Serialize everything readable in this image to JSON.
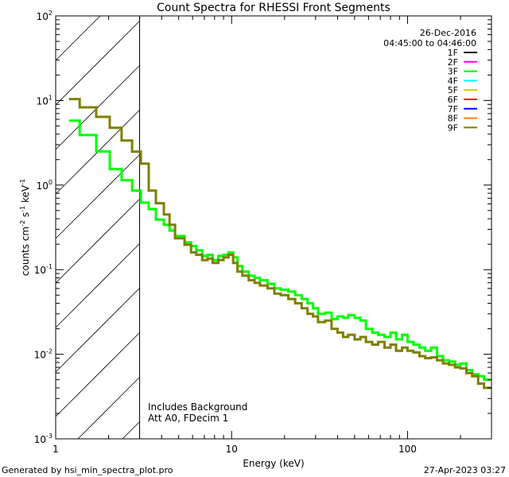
{
  "chart_data": {
    "type": "line",
    "title": "Count Spectra for RHESSI Front Segments",
    "xlabel": "Energy (keV)",
    "ylabel": "counts cm-2 s-1 keV-1",
    "xscale": "log",
    "yscale": "log",
    "xlim": [
      1,
      300
    ],
    "ylim": [
      0.001,
      100
    ],
    "x_tick_labels": [
      "1",
      "10",
      "100"
    ],
    "x_tick_values": [
      1,
      10,
      100
    ],
    "y_tick_values": [
      0.001,
      0.01,
      0.1,
      1,
      10,
      100
    ],
    "y_tick_labels": [
      {
        "base": "10",
        "exp": "-3"
      },
      {
        "base": "10",
        "exp": "-2"
      },
      {
        "base": "10",
        "exp": "-1"
      },
      {
        "base": "10",
        "exp": "0"
      },
      {
        "base": "10",
        "exp": "1"
      },
      {
        "base": "10",
        "exp": "2"
      }
    ],
    "shaded_region_keV": [
      1,
      3
    ],
    "legend_header": [
      "26-Dec-2016",
      "04:45:00 to 04:46:00"
    ],
    "legend_placement": "top-right",
    "legend": [
      {
        "name": "1F",
        "color": "#000000"
      },
      {
        "name": "2F",
        "color": "#ff00ff"
      },
      {
        "name": "3F",
        "color": "#00ff00"
      },
      {
        "name": "4F",
        "color": "#00ffff"
      },
      {
        "name": "5F",
        "color": "#d4c800"
      },
      {
        "name": "6F",
        "color": "#ff0000"
      },
      {
        "name": "7F",
        "color": "#0000ff"
      },
      {
        "name": "8F",
        "color": "#ff8000"
      },
      {
        "name": "9F",
        "color": "#7f7f00"
      }
    ],
    "annotations": [
      "Includes Background",
      "Att A0, FDecim 1"
    ],
    "energy_edges_keV": [
      1.19,
      1.37,
      1.7,
      2.03,
      2.37,
      2.72,
      3.05,
      3.38,
      3.71,
      4.12,
      4.44,
      4.77,
      5.4,
      5.88,
      6.3,
      6.8,
      7.3,
      7.8,
      8.4,
      9.0,
      9.6,
      10.2,
      10.8,
      11.5,
      12.5,
      13.5,
      14.5,
      16,
      17.5,
      19,
      21,
      23,
      25,
      27,
      29,
      31,
      34,
      37,
      40,
      43,
      46,
      50,
      54,
      58,
      63,
      68,
      74,
      80,
      86,
      93,
      100,
      108,
      117,
      126,
      136,
      147,
      159,
      172,
      186,
      200,
      216,
      233,
      252,
      272,
      300
    ],
    "series": [
      {
        "name": "3F",
        "color": "#00ff00",
        "values": [
          5.77,
          3.9,
          2.5,
          1.54,
          1.14,
          0.86,
          0.62,
          0.52,
          0.39,
          0.34,
          0.29,
          0.25,
          0.21,
          0.19,
          0.17,
          0.145,
          0.15,
          0.13,
          0.145,
          0.15,
          0.16,
          0.14,
          0.11,
          0.095,
          0.085,
          0.08,
          0.075,
          0.068,
          0.06,
          0.058,
          0.055,
          0.05,
          0.045,
          0.04,
          0.035,
          0.03,
          0.031,
          0.026,
          0.028,
          0.027,
          0.029,
          0.027,
          0.025,
          0.02,
          0.018,
          0.017,
          0.016,
          0.018,
          0.015,
          0.017,
          0.014,
          0.013,
          0.012,
          0.011,
          0.012,
          0.0095,
          0.0085,
          0.0082,
          0.0075,
          0.0078,
          0.0065,
          0.0058,
          0.0055,
          0.005
        ]
      },
      {
        "name": "9F",
        "color": "#7f7f00",
        "values": [
          10.4,
          8.3,
          6.4,
          4.75,
          3.36,
          2.48,
          1.79,
          0.86,
          0.61,
          0.45,
          0.34,
          0.235,
          0.197,
          0.16,
          0.15,
          0.13,
          0.135,
          0.12,
          0.13,
          0.14,
          0.15,
          0.12,
          0.095,
          0.085,
          0.075,
          0.07,
          0.065,
          0.06,
          0.052,
          0.05,
          0.045,
          0.04,
          0.035,
          0.03,
          0.028,
          0.024,
          0.025,
          0.02,
          0.018,
          0.016,
          0.017,
          0.015,
          0.016,
          0.014,
          0.013,
          0.014,
          0.012,
          0.013,
          0.011,
          0.012,
          0.011,
          0.0105,
          0.0095,
          0.009,
          0.0092,
          0.0085,
          0.0078,
          0.0075,
          0.007,
          0.0068,
          0.006,
          0.0055,
          0.0045,
          0.004
        ]
      }
    ]
  },
  "footer": {
    "generated_by": "Generated by hsi_min_spectra_plot.pro",
    "timestamp": "27-Apr-2023 03:27"
  }
}
